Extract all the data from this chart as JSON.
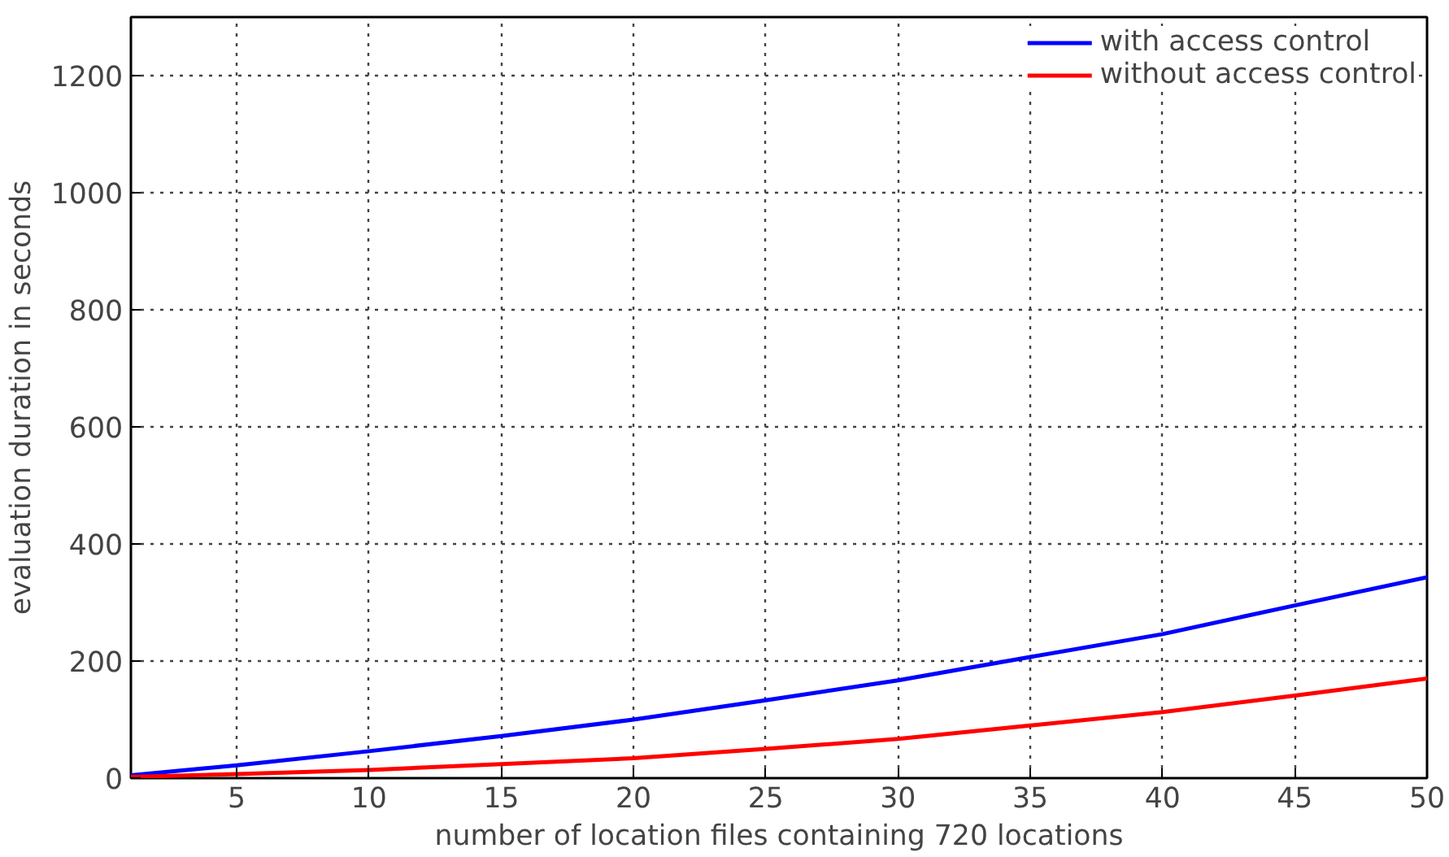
{
  "chart_data": {
    "type": "line",
    "xlabel": "number of location files containing 720 locations",
    "ylabel": "evaluation duration in seconds",
    "x": [
      1,
      5,
      10,
      15,
      20,
      25,
      30,
      35,
      40,
      45,
      50
    ],
    "series": [
      {
        "name": "with access control",
        "color": "#0000ff",
        "values": [
          5,
          22,
          46,
          72,
          100,
          133,
          167,
          207,
          246,
          295,
          343
        ]
      },
      {
        "name": "without access control",
        "color": "#ff0000",
        "values": [
          2,
          7,
          14,
          24,
          34,
          50,
          67,
          90,
          113,
          141,
          170
        ]
      }
    ],
    "xlim": [
      1,
      50
    ],
    "xticks": [
      5,
      10,
      15,
      20,
      25,
      30,
      35,
      40,
      45,
      50
    ],
    "ylim": [
      0,
      1300
    ],
    "yticks": [
      0,
      200,
      400,
      600,
      800,
      1000,
      1200
    ],
    "grid": true,
    "legend": "top right",
    "marker": "none",
    "line_style": "solid"
  }
}
